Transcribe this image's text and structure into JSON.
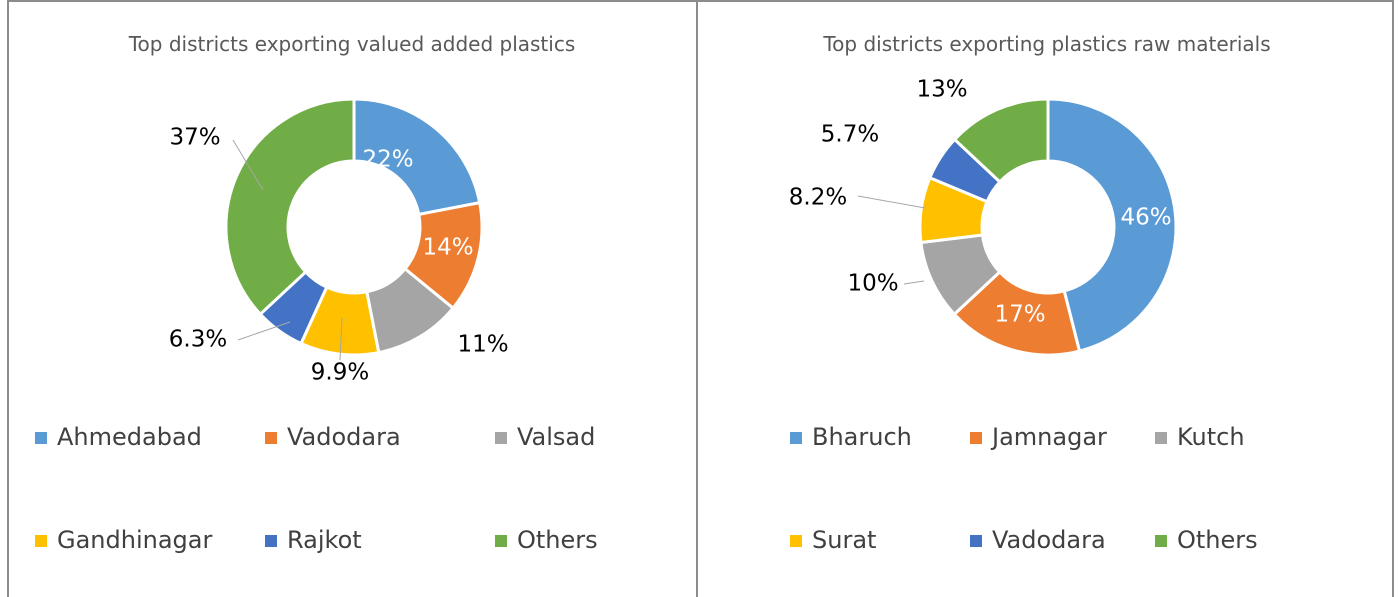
{
  "chart_data": [
    {
      "type": "donut",
      "title": "Top districts exporting valued added plastics",
      "categories": [
        "Ahmedabad",
        "Vadodara",
        "Valsad",
        "Gandhinagar",
        "Rajkot",
        "Others"
      ],
      "values": [
        22,
        14,
        11,
        9.9,
        6.3,
        37
      ],
      "value_labels": [
        "22%",
        "14%",
        "11%",
        "9.9%",
        "6.3%",
        "37%"
      ],
      "colors": [
        "#5b9bd5",
        "#ed7d31",
        "#a5a5a5",
        "#ffc000",
        "#4472c4",
        "#70ad47"
      ],
      "legend": "bottom"
    },
    {
      "type": "donut",
      "title": "Top districts exporting plastics raw materials",
      "categories": [
        "Bharuch",
        "Jamnagar",
        "Kutch",
        "Surat",
        "Vadodara",
        "Others"
      ],
      "values": [
        46,
        17,
        10,
        8.2,
        5.7,
        13
      ],
      "value_labels": [
        "46%",
        "17%",
        "10%",
        "8.2%",
        "5.7%",
        "13%"
      ],
      "colors": [
        "#5b9bd5",
        "#ed7d31",
        "#a5a5a5",
        "#ffc000",
        "#4472c4",
        "#70ad47"
      ],
      "legend": "bottom"
    }
  ]
}
